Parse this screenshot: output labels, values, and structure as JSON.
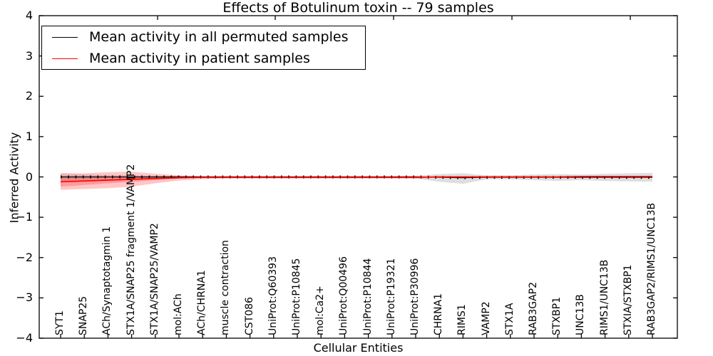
{
  "chart_data": {
    "type": "line",
    "title": "Effects of Botulinum toxin -- 79 samples",
    "xlabel": "Cellular Entities",
    "ylabel": "Inferred Activity",
    "ylim": [
      -4,
      4
    ],
    "yticks": [
      4,
      3,
      2,
      1,
      0,
      -1,
      -2,
      -3,
      -4
    ],
    "ytick_labels": [
      "4",
      "3",
      "2",
      "1",
      "0",
      "−1",
      "−2",
      "−3",
      "−4"
    ],
    "grid": false,
    "legend_position": "upper-left",
    "legend": [
      {
        "label": "Mean activity in all permuted samples",
        "color": "#000000"
      },
      {
        "label": "Mean activity in patient samples",
        "color": "#ff0000"
      }
    ],
    "categories": [
      "SYT1",
      "SNAP25",
      "ACh/Synaptotagmin 1",
      "STX1A/SNAP25 fragment 1/VAMP2",
      "STX1A/SNAP25/VAMP2",
      "mol:ACh",
      "ACh/CHRNA1",
      "muscle contraction",
      "CST086",
      "UniProt:Q60393",
      "UniProt:P10845",
      "mol:Ca2+",
      "UniProt:Q00496",
      "UniProt:P10844",
      "UniProt:P19321",
      "UniProt:P30996",
      "CHRNA1",
      "RIMS1",
      "VAMP2",
      "STX1A",
      "RAB3GAP2",
      "STXBP1",
      "UNC13B",
      "RIMS1/UNC13B",
      "STXIA/STXBP1",
      "RAB3GAP2/RIMS1/UNC13B"
    ],
    "series": [
      {
        "name": "Mean activity in all permuted samples",
        "color": "#000000",
        "style": "solid-with-tick-markers",
        "values": [
          0.0,
          0.0,
          0.0,
          0.0,
          0.0,
          0.0,
          0.0,
          0.0,
          0.0,
          0.0,
          0.0,
          0.0,
          0.0,
          0.0,
          0.0,
          0.0,
          -0.01,
          -0.02,
          -0.01,
          -0.01,
          -0.01,
          -0.01,
          -0.01,
          -0.01,
          -0.01,
          -0.01
        ],
        "band_upper": [
          0.07,
          0.06,
          0.05,
          0.04,
          0.03,
          0.03,
          0.02,
          0.02,
          0.02,
          0.02,
          0.02,
          0.02,
          0.02,
          0.02,
          0.02,
          0.03,
          0.07,
          0.09,
          0.04,
          0.04,
          0.06,
          0.07,
          0.06,
          0.08,
          0.09,
          0.1
        ],
        "band_lower": [
          -0.1,
          -0.09,
          -0.07,
          -0.06,
          -0.05,
          -0.04,
          -0.03,
          -0.03,
          -0.03,
          -0.03,
          -0.03,
          -0.03,
          -0.03,
          -0.03,
          -0.03,
          -0.04,
          -0.12,
          -0.17,
          -0.06,
          -0.06,
          -0.08,
          -0.1,
          -0.08,
          -0.1,
          -0.11,
          -0.12
        ],
        "band_color": "#000000",
        "band_opacity": 0.13
      },
      {
        "name": "Mean activity in patient samples",
        "color": "#ff0000",
        "style": "solid",
        "values": [
          -0.12,
          -0.1,
          -0.08,
          -0.06,
          -0.04,
          -0.02,
          -0.01,
          -0.01,
          -0.01,
          -0.01,
          -0.01,
          -0.01,
          -0.01,
          -0.01,
          -0.01,
          -0.01,
          0.0,
          0.0,
          0.0,
          0.0,
          0.0,
          0.0,
          0.01,
          0.01,
          0.01,
          0.01
        ],
        "band_upper": [
          0.1,
          0.09,
          0.12,
          0.13,
          0.08,
          0.04,
          0.02,
          0.02,
          0.02,
          0.02,
          0.02,
          0.02,
          0.02,
          0.02,
          0.02,
          0.02,
          0.01,
          0.01,
          0.01,
          0.01,
          0.01,
          0.01,
          0.02,
          0.02,
          0.02,
          0.02
        ],
        "band_lower": [
          -0.32,
          -0.3,
          -0.28,
          -0.24,
          -0.16,
          -0.09,
          -0.05,
          -0.04,
          -0.04,
          -0.04,
          -0.04,
          -0.04,
          -0.04,
          -0.04,
          -0.04,
          -0.04,
          -0.02,
          -0.02,
          -0.02,
          -0.02,
          -0.02,
          -0.02,
          -0.01,
          -0.01,
          -0.01,
          -0.01
        ],
        "band_color": "#ff0000",
        "band_opacity": 0.22,
        "inner_band_upper": [
          0.0,
          -0.01,
          -0.01,
          0.0,
          0.0,
          0.0,
          0.0,
          0.0,
          0.0,
          0.0,
          0.0,
          0.0,
          0.0,
          0.0,
          0.0,
          0.0,
          0.0,
          0.0,
          0.0,
          0.0,
          0.0,
          0.0,
          0.01,
          0.01,
          0.01,
          0.01
        ],
        "inner_band_lower": [
          -0.24,
          -0.2,
          -0.16,
          -0.12,
          -0.08,
          -0.04,
          -0.02,
          -0.02,
          -0.02,
          -0.02,
          -0.02,
          -0.02,
          -0.02,
          -0.02,
          -0.02,
          -0.02,
          -0.01,
          -0.01,
          -0.01,
          -0.01,
          -0.01,
          -0.01,
          0.0,
          0.0,
          0.0,
          0.0
        ]
      }
    ],
    "colors": {
      "frame": "#000000",
      "background": "#ffffff"
    }
  }
}
